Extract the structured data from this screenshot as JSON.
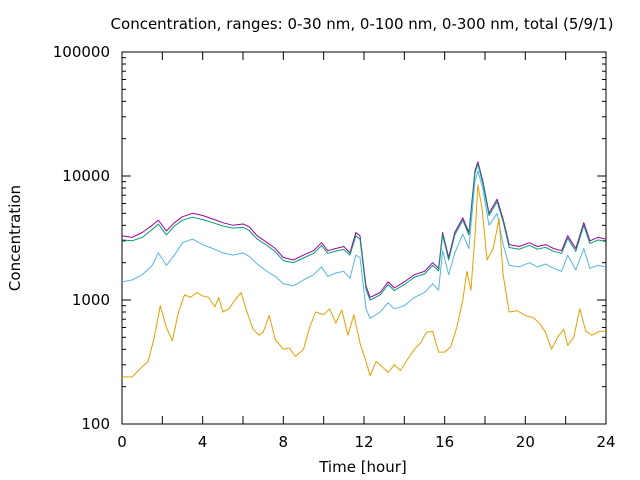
{
  "chart_data": {
    "type": "line",
    "title": "Concentration, ranges: 0-30 nm, 0-100 nm, 0-300 nm, total (5/9/1)",
    "xlabel": "Time [hour]",
    "ylabel": "Concentration",
    "xlim": [
      0,
      24
    ],
    "ylim": [
      100,
      100000
    ],
    "yscale": "log",
    "grid": false,
    "legend": "none",
    "x_ticks": [
      "0",
      "4",
      "8",
      "12",
      "16",
      "20",
      "24"
    ],
    "y_ticks": [
      "100",
      "1000",
      "10000",
      "100000"
    ],
    "series": [
      {
        "color": "#a000a0",
        "points": [
          [
            0,
            3300
          ],
          [
            0.5,
            3200
          ],
          [
            1,
            3500
          ],
          [
            1.5,
            4000
          ],
          [
            1.8,
            4400
          ],
          [
            2.2,
            3600
          ],
          [
            2.6,
            4200
          ],
          [
            3,
            4700
          ],
          [
            3.5,
            5000
          ],
          [
            4,
            4800
          ],
          [
            4.5,
            4500
          ],
          [
            5,
            4200
          ],
          [
            5.5,
            4000
          ],
          [
            6,
            4100
          ],
          [
            6.3,
            3900
          ],
          [
            6.7,
            3300
          ],
          [
            7.2,
            2900
          ],
          [
            7.6,
            2600
          ],
          [
            8,
            2200
          ],
          [
            8.5,
            2100
          ],
          [
            9,
            2300
          ],
          [
            9.5,
            2500
          ],
          [
            9.9,
            2900
          ],
          [
            10.2,
            2500
          ],
          [
            10.6,
            2600
          ],
          [
            11,
            2700
          ],
          [
            11.3,
            2400
          ],
          [
            11.6,
            3500
          ],
          [
            11.8,
            3300
          ],
          [
            12.1,
            1300
          ],
          [
            12.3,
            1050
          ],
          [
            12.8,
            1150
          ],
          [
            13.2,
            1400
          ],
          [
            13.5,
            1250
          ],
          [
            14,
            1400
          ],
          [
            14.5,
            1600
          ],
          [
            15,
            1700
          ],
          [
            15.4,
            2000
          ],
          [
            15.7,
            1800
          ],
          [
            15.9,
            3500
          ],
          [
            16.2,
            2200
          ],
          [
            16.5,
            3500
          ],
          [
            16.9,
            4600
          ],
          [
            17.2,
            3500
          ],
          [
            17.5,
            11000
          ],
          [
            17.65,
            13000
          ],
          [
            17.9,
            9000
          ],
          [
            18.2,
            5000
          ],
          [
            18.6,
            6500
          ],
          [
            18.9,
            4500
          ],
          [
            19.2,
            2800
          ],
          [
            19.7,
            2700
          ],
          [
            20.2,
            2900
          ],
          [
            20.6,
            2700
          ],
          [
            21,
            2800
          ],
          [
            21.4,
            2600
          ],
          [
            21.8,
            2500
          ],
          [
            22.1,
            3300
          ],
          [
            22.5,
            2600
          ],
          [
            22.9,
            4200
          ],
          [
            23.2,
            3000
          ],
          [
            23.6,
            3200
          ],
          [
            24,
            3100
          ]
        ]
      },
      {
        "color": "#009e73",
        "points": [
          [
            0,
            3050
          ],
          [
            0.5,
            3000
          ],
          [
            1,
            3200
          ],
          [
            1.5,
            3700
          ],
          [
            1.8,
            4100
          ],
          [
            2.2,
            3350
          ],
          [
            2.6,
            3950
          ],
          [
            3,
            4400
          ],
          [
            3.5,
            4650
          ],
          [
            4,
            4450
          ],
          [
            4.5,
            4200
          ],
          [
            5,
            3950
          ],
          [
            5.5,
            3800
          ],
          [
            6,
            3850
          ],
          [
            6.3,
            3650
          ],
          [
            6.7,
            3100
          ],
          [
            7.2,
            2750
          ],
          [
            7.6,
            2450
          ],
          [
            8,
            2080
          ],
          [
            8.5,
            2000
          ],
          [
            9,
            2180
          ],
          [
            9.5,
            2380
          ],
          [
            9.9,
            2750
          ],
          [
            10.2,
            2380
          ],
          [
            10.6,
            2480
          ],
          [
            11,
            2560
          ],
          [
            11.3,
            2300
          ],
          [
            11.6,
            3300
          ],
          [
            11.8,
            3100
          ],
          [
            12.1,
            1220
          ],
          [
            12.3,
            1000
          ],
          [
            12.8,
            1100
          ],
          [
            13.2,
            1330
          ],
          [
            13.5,
            1190
          ],
          [
            14,
            1330
          ],
          [
            14.5,
            1530
          ],
          [
            15,
            1620
          ],
          [
            15.4,
            1900
          ],
          [
            15.7,
            1720
          ],
          [
            15.9,
            3350
          ],
          [
            16.2,
            2100
          ],
          [
            16.5,
            3350
          ],
          [
            16.9,
            4400
          ],
          [
            17.2,
            3350
          ],
          [
            17.5,
            10500
          ],
          [
            17.65,
            12500
          ],
          [
            17.9,
            8600
          ],
          [
            18.2,
            4800
          ],
          [
            18.6,
            6200
          ],
          [
            18.9,
            4300
          ],
          [
            19.2,
            2650
          ],
          [
            19.7,
            2570
          ],
          [
            20.2,
            2760
          ],
          [
            20.6,
            2570
          ],
          [
            21,
            2660
          ],
          [
            21.4,
            2470
          ],
          [
            21.8,
            2380
          ],
          [
            22.1,
            3150
          ],
          [
            22.5,
            2470
          ],
          [
            22.9,
            4000
          ],
          [
            23.2,
            2850
          ],
          [
            23.6,
            3050
          ],
          [
            24,
            2950
          ]
        ]
      },
      {
        "color": "#56b4e9",
        "points": [
          [
            0,
            1400
          ],
          [
            0.5,
            1450
          ],
          [
            1,
            1600
          ],
          [
            1.5,
            1900
          ],
          [
            1.8,
            2400
          ],
          [
            2.2,
            1900
          ],
          [
            2.6,
            2300
          ],
          [
            3,
            2900
          ],
          [
            3.5,
            3100
          ],
          [
            4,
            2800
          ],
          [
            4.5,
            2600
          ],
          [
            5,
            2400
          ],
          [
            5.5,
            2300
          ],
          [
            6,
            2400
          ],
          [
            6.3,
            2250
          ],
          [
            6.7,
            1950
          ],
          [
            7.2,
            1700
          ],
          [
            7.6,
            1550
          ],
          [
            8,
            1350
          ],
          [
            8.5,
            1300
          ],
          [
            9,
            1450
          ],
          [
            9.5,
            1600
          ],
          [
            9.9,
            1850
          ],
          [
            10.2,
            1550
          ],
          [
            10.6,
            1650
          ],
          [
            11,
            1700
          ],
          [
            11.3,
            1500
          ],
          [
            11.6,
            2300
          ],
          [
            11.8,
            2200
          ],
          [
            12.1,
            850
          ],
          [
            12.3,
            710
          ],
          [
            12.8,
            800
          ],
          [
            13.2,
            950
          ],
          [
            13.5,
            850
          ],
          [
            14,
            900
          ],
          [
            14.5,
            1050
          ],
          [
            15,
            1150
          ],
          [
            15.4,
            1350
          ],
          [
            15.7,
            1200
          ],
          [
            15.9,
            2500
          ],
          [
            16.2,
            1600
          ],
          [
            16.5,
            2400
          ],
          [
            16.9,
            3400
          ],
          [
            17.2,
            2600
          ],
          [
            17.5,
            9000
          ],
          [
            17.65,
            11000
          ],
          [
            17.9,
            7800
          ],
          [
            18.2,
            4000
          ],
          [
            18.6,
            5000
          ],
          [
            18.9,
            2800
          ],
          [
            19.2,
            1900
          ],
          [
            19.7,
            1850
          ],
          [
            20.2,
            2000
          ],
          [
            20.6,
            1850
          ],
          [
            21,
            1950
          ],
          [
            21.4,
            1800
          ],
          [
            21.8,
            1700
          ],
          [
            22.1,
            2300
          ],
          [
            22.5,
            1750
          ],
          [
            22.9,
            2600
          ],
          [
            23.2,
            1800
          ],
          [
            23.6,
            1900
          ],
          [
            24,
            1850
          ]
        ]
      },
      {
        "color": "#e69f00",
        "points": [
          [
            0,
            240
          ],
          [
            0.5,
            240
          ],
          [
            1,
            290
          ],
          [
            1.3,
            320
          ],
          [
            1.6,
            500
          ],
          [
            1.9,
            900
          ],
          [
            2.2,
            600
          ],
          [
            2.5,
            470
          ],
          [
            2.8,
            800
          ],
          [
            3.1,
            1100
          ],
          [
            3.4,
            1050
          ],
          [
            3.7,
            1150
          ],
          [
            4,
            1080
          ],
          [
            4.3,
            1050
          ],
          [
            4.6,
            880
          ],
          [
            4.8,
            1050
          ],
          [
            5,
            800
          ],
          [
            5.3,
            850
          ],
          [
            5.6,
            1000
          ],
          [
            5.9,
            1150
          ],
          [
            6.2,
            800
          ],
          [
            6.5,
            580
          ],
          [
            6.8,
            520
          ],
          [
            7,
            550
          ],
          [
            7.3,
            750
          ],
          [
            7.6,
            480
          ],
          [
            8,
            400
          ],
          [
            8.3,
            410
          ],
          [
            8.6,
            350
          ],
          [
            9,
            400
          ],
          [
            9.3,
            600
          ],
          [
            9.6,
            800
          ],
          [
            10,
            760
          ],
          [
            10.3,
            850
          ],
          [
            10.6,
            650
          ],
          [
            10.9,
            830
          ],
          [
            11.2,
            520
          ],
          [
            11.5,
            760
          ],
          [
            11.8,
            450
          ],
          [
            12.1,
            320
          ],
          [
            12.3,
            245
          ],
          [
            12.6,
            320
          ],
          [
            12.9,
            290
          ],
          [
            13.2,
            260
          ],
          [
            13.5,
            300
          ],
          [
            13.8,
            270
          ],
          [
            14.2,
            340
          ],
          [
            14.5,
            400
          ],
          [
            14.8,
            450
          ],
          [
            15.1,
            550
          ],
          [
            15.4,
            560
          ],
          [
            15.7,
            380
          ],
          [
            16,
            380
          ],
          [
            16.3,
            420
          ],
          [
            16.6,
            600
          ],
          [
            16.9,
            1000
          ],
          [
            17.1,
            1700
          ],
          [
            17.3,
            1200
          ],
          [
            17.5,
            3200
          ],
          [
            17.65,
            8500
          ],
          [
            17.85,
            5500
          ],
          [
            18.1,
            2100
          ],
          [
            18.4,
            2600
          ],
          [
            18.7,
            4500
          ],
          [
            18.9,
            1600
          ],
          [
            19.2,
            800
          ],
          [
            19.6,
            820
          ],
          [
            20,
            750
          ],
          [
            20.4,
            720
          ],
          [
            20.7,
            650
          ],
          [
            21,
            550
          ],
          [
            21.3,
            400
          ],
          [
            21.6,
            500
          ],
          [
            21.9,
            580
          ],
          [
            22.1,
            430
          ],
          [
            22.4,
            500
          ],
          [
            22.7,
            850
          ],
          [
            23,
            560
          ],
          [
            23.3,
            520
          ],
          [
            23.7,
            560
          ],
          [
            24,
            560
          ]
        ]
      }
    ]
  }
}
